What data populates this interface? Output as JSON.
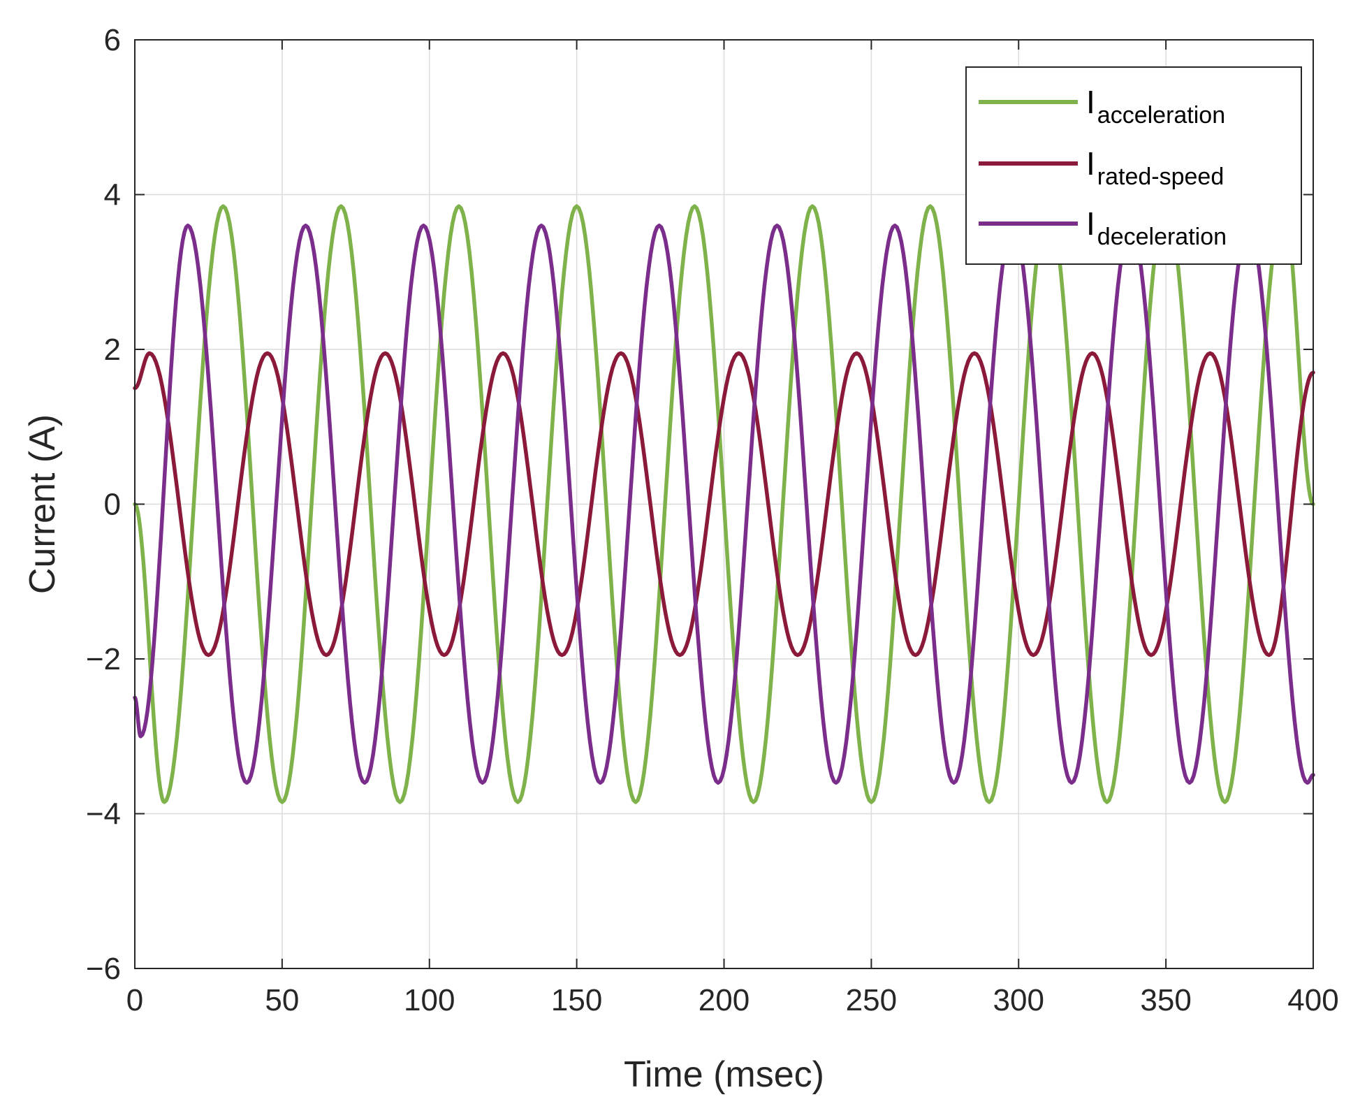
{
  "chart_data": {
    "type": "line",
    "xlabel": "Time (msec)",
    "ylabel": "Current (A)",
    "xlim": [
      0,
      400
    ],
    "ylim": [
      -6,
      6
    ],
    "xticks": [
      0,
      50,
      100,
      150,
      200,
      250,
      300,
      350,
      400
    ],
    "yticks": [
      -6,
      -4,
      -2,
      0,
      2,
      4,
      6
    ],
    "ytick_labels": [
      "−6",
      "−4",
      "−2",
      "0",
      "2",
      "4",
      "6"
    ],
    "grid": true,
    "legend": {
      "position": "top-right",
      "entries": [
        {
          "main": "I",
          "sub": "acceleration"
        },
        {
          "main": "I",
          "sub": "rated-speed"
        },
        {
          "main": "I",
          "sub": "deceleration"
        }
      ]
    },
    "series": [
      {
        "name": "Iacceleration",
        "color": "#7fb24a",
        "x": [
          0,
          10,
          30,
          50,
          70,
          90,
          110,
          130,
          150,
          170,
          190,
          210,
          230,
          250,
          270,
          290,
          310,
          330,
          350,
          370,
          390,
          400
        ],
        "y": [
          0,
          -3.85,
          3.85,
          -3.85,
          3.85,
          -3.85,
          3.85,
          -3.85,
          3.85,
          -3.85,
          3.85,
          -3.85,
          3.85,
          -3.85,
          3.85,
          -3.85,
          3.85,
          -3.85,
          3.85,
          -3.85,
          3.85,
          0
        ]
      },
      {
        "name": "Irated-speed",
        "color": "#8b1a3a",
        "x": [
          0,
          5,
          25,
          45,
          65,
          85,
          105,
          125,
          145,
          165,
          185,
          205,
          225,
          245,
          265,
          285,
          305,
          325,
          345,
          365,
          385,
          400
        ],
        "y": [
          1.5,
          1.95,
          -1.95,
          1.95,
          -1.95,
          1.95,
          -1.95,
          1.95,
          -1.95,
          1.95,
          -1.95,
          1.95,
          -1.95,
          1.95,
          -1.95,
          1.95,
          -1.95,
          1.95,
          -1.95,
          1.95,
          -1.95,
          1.7
        ]
      },
      {
        "name": "Ideceleration",
        "color": "#7b2d8b",
        "x": [
          0,
          2,
          18,
          38,
          58,
          78,
          98,
          118,
          138,
          158,
          178,
          198,
          218,
          238,
          258,
          278,
          298,
          318,
          338,
          358,
          378,
          398,
          400
        ],
        "y": [
          -2.5,
          -3.0,
          3.6,
          -3.6,
          3.6,
          -3.6,
          3.6,
          -3.6,
          3.6,
          -3.6,
          3.6,
          -3.6,
          3.6,
          -3.6,
          3.6,
          -3.6,
          3.6,
          -3.6,
          3.6,
          -3.6,
          3.6,
          -3.6,
          -3.5
        ]
      }
    ]
  }
}
